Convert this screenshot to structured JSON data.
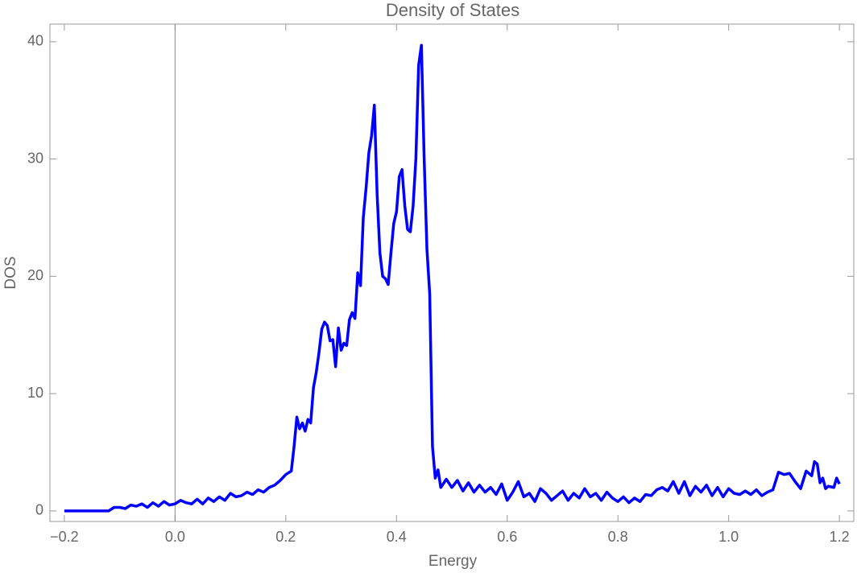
{
  "chart_data": {
    "type": "line",
    "title": "Density of States",
    "x_label": "Energy",
    "y_label": "DOS",
    "color": "#0000ff",
    "x": [
      -0.2,
      -0.19,
      -0.18,
      -0.17,
      -0.16,
      -0.15,
      -0.14,
      -0.13,
      -0.12,
      -0.11,
      -0.1,
      -0.09,
      -0.08,
      -0.07,
      -0.06,
      -0.05,
      -0.04,
      -0.03,
      -0.02,
      -0.01,
      0,
      0.01,
      0.02,
      0.03,
      0.04,
      0.05,
      0.06,
      0.07,
      0.08,
      0.09,
      0.1,
      0.11,
      0.12,
      0.13,
      0.14,
      0.15,
      0.16,
      0.17,
      0.18,
      0.19,
      0.2,
      0.21,
      0.215,
      0.22,
      0.225,
      0.23,
      0.235,
      0.24,
      0.245,
      0.25,
      0.255,
      0.26,
      0.265,
      0.27,
      0.275,
      0.28,
      0.285,
      0.29,
      0.295,
      0.3,
      0.305,
      0.31,
      0.315,
      0.32,
      0.325,
      0.33,
      0.335,
      0.34,
      0.345,
      0.35,
      0.355,
      0.36,
      0.365,
      0.37,
      0.375,
      0.38,
      0.385,
      0.39,
      0.395,
      0.4,
      0.405,
      0.41,
      0.415,
      0.42,
      0.425,
      0.43,
      0.435,
      0.44,
      0.445,
      0.45,
      0.455,
      0.46,
      0.465,
      0.47,
      0.475,
      0.48,
      0.49,
      0.5,
      0.51,
      0.52,
      0.53,
      0.54,
      0.55,
      0.56,
      0.57,
      0.58,
      0.59,
      0.6,
      0.61,
      0.62,
      0.63,
      0.64,
      0.65,
      0.66,
      0.67,
      0.68,
      0.69,
      0.7,
      0.71,
      0.72,
      0.73,
      0.74,
      0.75,
      0.76,
      0.77,
      0.78,
      0.79,
      0.8,
      0.81,
      0.82,
      0.83,
      0.84,
      0.85,
      0.86,
      0.87,
      0.88,
      0.89,
      0.9,
      0.91,
      0.92,
      0.93,
      0.94,
      0.95,
      0.96,
      0.97,
      0.98,
      0.99,
      1,
      1.01,
      1.02,
      1.03,
      1.04,
      1.05,
      1.06,
      1.07,
      1.08,
      1.09,
      1.1,
      1.11,
      1.12,
      1.13,
      1.14,
      1.15,
      1.155,
      1.16,
      1.165,
      1.17,
      1.175,
      1.18,
      1.19,
      1.195,
      1.2
    ],
    "values": [
      0,
      0,
      0,
      0,
      0,
      0,
      0,
      0,
      0,
      0.3,
      0.3,
      0.2,
      0.5,
      0.4,
      0.6,
      0.3,
      0.7,
      0.4,
      0.8,
      0.5,
      0.6,
      0.9,
      0.7,
      0.6,
      1.0,
      0.6,
      1.1,
      0.8,
      1.2,
      0.9,
      1.5,
      1.2,
      1.3,
      1.6,
      1.4,
      1.8,
      1.6,
      2.0,
      2.2,
      2.6,
      3.1,
      3.4,
      5.5,
      8.0,
      7.0,
      7.5,
      6.8,
      7.8,
      7.5,
      10.5,
      11.8,
      13.5,
      15.5,
      16.1,
      15.8,
      14.5,
      14.6,
      12.3,
      15.6,
      13.7,
      14.3,
      14.1,
      16.3,
      16.9,
      16.4,
      20.3,
      19.2,
      25.0,
      27.5,
      30.5,
      32.0,
      34.6,
      27.0,
      22.0,
      20.0,
      19.8,
      19.3,
      22.0,
      24.5,
      25.5,
      28.5,
      29.1,
      26.0,
      24.0,
      23.8,
      26.0,
      30.0,
      38.0,
      39.7,
      30.0,
      22.3,
      18.5,
      5.5,
      2.8,
      3.5,
      2.0,
      2.7,
      2.0,
      2.6,
      1.7,
      2.4,
      1.6,
      2.2,
      1.6,
      2.0,
      1.4,
      2.3,
      0.9,
      1.6,
      2.5,
      1.2,
      1.5,
      0.8,
      1.9,
      1.5,
      0.9,
      1.3,
      1.7,
      0.9,
      1.5,
      1.1,
      1.9,
      1.2,
      1.5,
      0.9,
      1.6,
      1.1,
      0.8,
      1.2,
      0.7,
      1.1,
      0.8,
      1.4,
      1.3,
      1.8,
      2.0,
      1.7,
      2.5,
      1.5,
      2.5,
      1.3,
      2.1,
      1.6,
      2.2,
      1.3,
      2.0,
      1.2,
      1.9,
      1.5,
      1.4,
      1.7,
      1.4,
      1.8,
      1.3,
      1.6,
      1.8,
      3.3,
      3.1,
      3.2,
      2.5,
      1.9,
      3.4,
      3.0,
      4.2,
      4.0,
      2.4,
      2.8,
      1.9,
      2.1,
      2.0,
      2.8,
      2.3
    ],
    "xlim": [
      -0.226,
      1.226
    ],
    "ylim": [
      -0.9,
      41.5
    ],
    "xticks": [
      {
        "value": -0.2,
        "label": "−0.2"
      },
      {
        "value": 0,
        "label": "0.0"
      },
      0.2,
      0.4,
      0.6,
      0.8,
      {
        "value": 1,
        "label": "1.0"
      },
      1.2
    ],
    "yticks": [
      0,
      10,
      20,
      30,
      40
    ]
  }
}
